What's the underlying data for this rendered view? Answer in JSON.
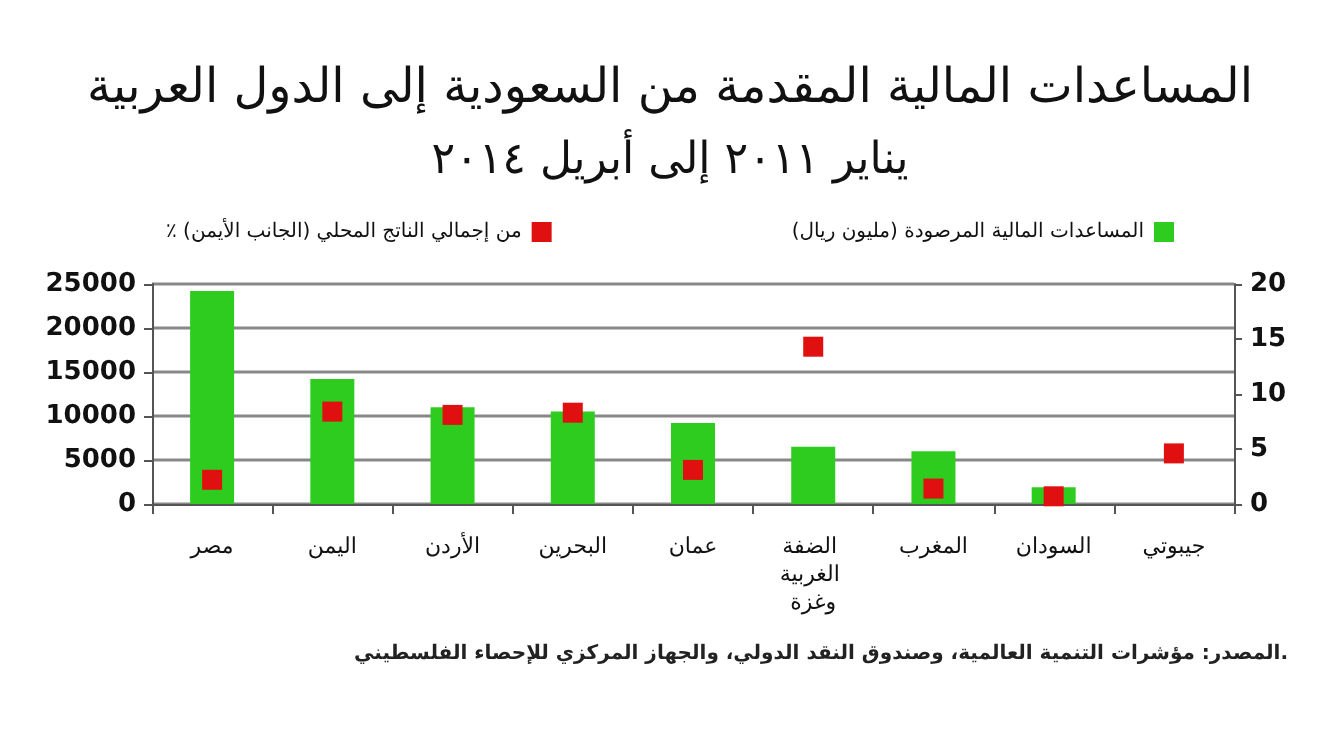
{
  "chart_data": {
    "type": "bar",
    "title": "المساعدات المالية المقدمة من السعودية إلى الدول العربية",
    "subtitle": "يناير ٢٠١١ إلى أبريل ٢٠١٤",
    "categories": [
      "مصر",
      "اليمن",
      "الأردن",
      "البحرين",
      "عمان",
      "الضفة الغربية وغزة",
      "المغرب",
      "السودان",
      "جيبوتي"
    ],
    "series": [
      {
        "name": "المساعدات المالية المرصودة (مليون ريال)",
        "color": "#2ecc1f",
        "values": [
          24200,
          14200,
          11000,
          10500,
          9200,
          6500,
          6000,
          1900,
          null
        ]
      },
      {
        "name": "٪ من إجمالي الناتج المحلي (الجانب الأيمن)",
        "type": "scatter",
        "axis": "y2",
        "color": "#e01010",
        "values": [
          2.2,
          8.4,
          8.1,
          8.3,
          3.1,
          14.3,
          1.4,
          0.7,
          4.6
        ]
      }
    ],
    "ylim": [
      0,
      25000
    ],
    "yticks": [
      0,
      5000,
      10000,
      15000,
      20000,
      25000
    ],
    "y2lim": [
      0,
      20
    ],
    "y2ticks": [
      0,
      5,
      10,
      15,
      20
    ],
    "grid": "y",
    "legend": "top",
    "marker": "square",
    "annotations": [
      "المصدر: مؤشرات التنمية العالمية، وصندوق النقد الدولي، والجهاز المركزي للإحصاء الفلسطيني."
    ]
  }
}
